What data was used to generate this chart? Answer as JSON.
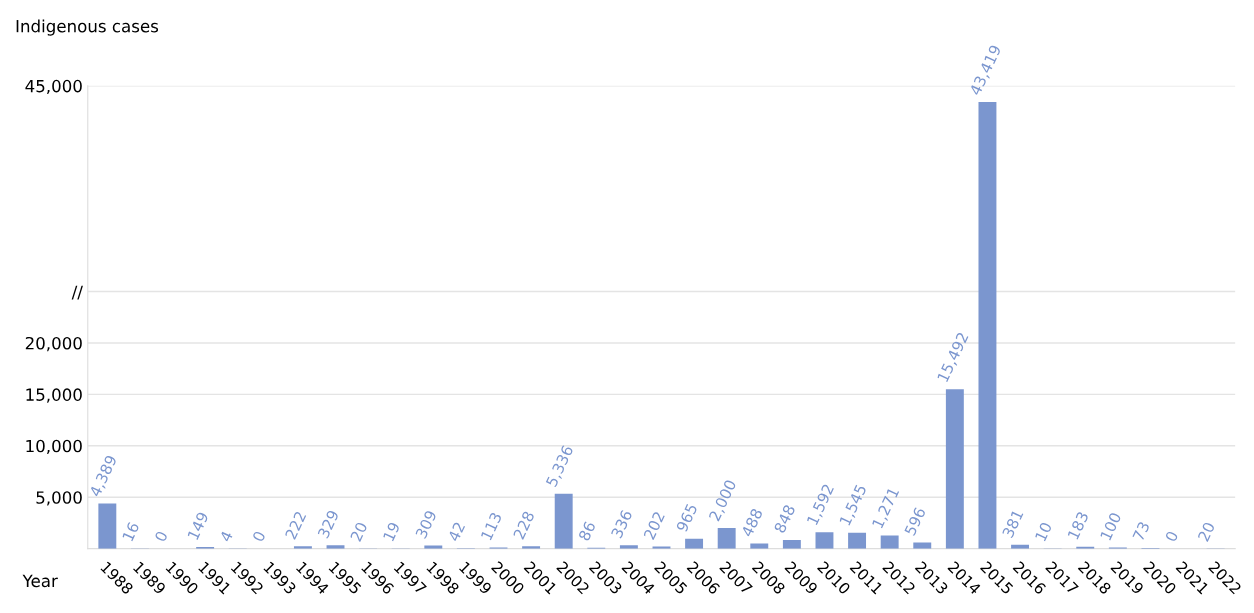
{
  "chart_data": {
    "type": "bar",
    "ylabel": "Indigenous cases",
    "xlabel": "Year",
    "categories": [
      "1988",
      "1989",
      "1990",
      "1991",
      "1992",
      "1993",
      "1994",
      "1995",
      "1996",
      "1997",
      "1998",
      "1999",
      "2000",
      "2001",
      "2002",
      "2003",
      "2004",
      "2005",
      "2006",
      "2007",
      "2008",
      "2009",
      "2010",
      "2011",
      "2012",
      "2013",
      "2014",
      "2015",
      "2016",
      "2017",
      "2018",
      "2019",
      "2020",
      "2021",
      "2022"
    ],
    "values": [
      4389,
      16,
      0,
      149,
      4,
      0,
      222,
      329,
      20,
      19,
      309,
      42,
      113,
      228,
      5336,
      86,
      336,
      202,
      965,
      2000,
      488,
      848,
      1592,
      1545,
      1271,
      596,
      15492,
      43419,
      381,
      10,
      183,
      100,
      73,
      0,
      20
    ],
    "value_labels": [
      "4,389",
      "16",
      "0",
      "149",
      "4",
      "0",
      "222",
      "329",
      "20",
      "19",
      "309",
      "42",
      "113",
      "228",
      "5,336",
      "86",
      "336",
      "202",
      "965",
      "2,000",
      "488",
      "848",
      "1,592",
      "1,545",
      "1,271",
      "596",
      "15,492",
      "43,419",
      "381",
      "10",
      "183",
      "100",
      "73",
      "0",
      "20"
    ],
    "color": "#7b96cf",
    "ylim": [
      0,
      45000
    ],
    "yticks": [
      {
        "value": 5000,
        "label": "5,000"
      },
      {
        "value": 10000,
        "label": "10,000"
      },
      {
        "value": 15000,
        "label": "15,000"
      },
      {
        "value": 20000,
        "label": "20,000"
      },
      {
        "value": 25000,
        "label": "//"
      },
      {
        "value": 45000,
        "label": "45,000"
      }
    ],
    "grid": "y",
    "legend": false
  }
}
